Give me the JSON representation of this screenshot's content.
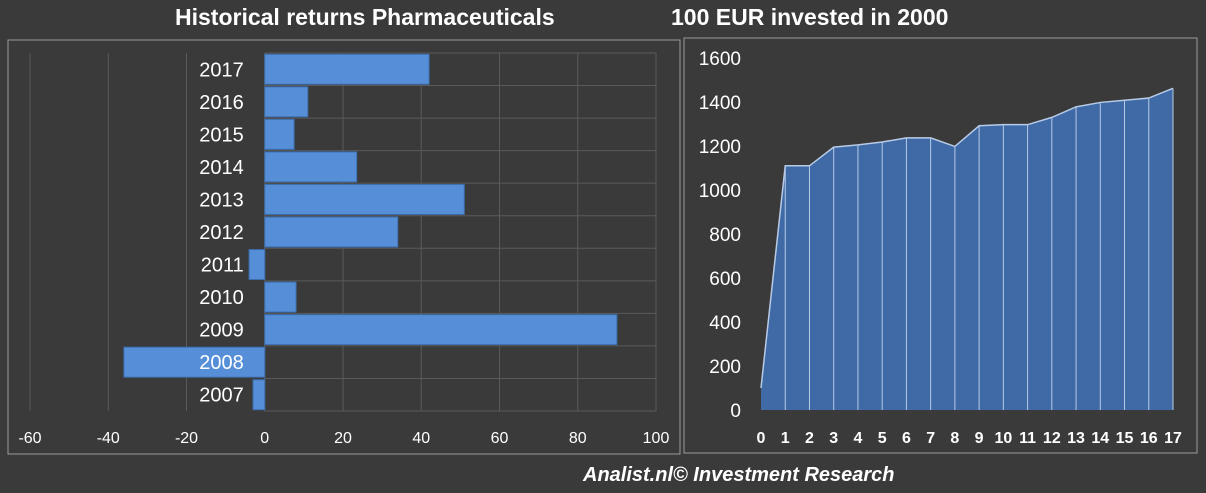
{
  "title_left": "Historical returns Pharmaceuticals",
  "title_right": "100 EUR invested in 2000",
  "footer": "Analist.nl© Investment Research",
  "colors": {
    "background": "#3a3a3a",
    "bar_fill": "#568fd8",
    "area_fill": "#3f6aa6",
    "area_line": "#b8cbe6",
    "grid": "#5a5a5a",
    "frame": "#9a9a9a"
  },
  "chart_data": [
    {
      "type": "bar",
      "orientation": "horizontal",
      "categories": [
        "2017",
        "2016",
        "2015",
        "2014",
        "2013",
        "2012",
        "2011",
        "2010",
        "2009",
        "2008",
        "2007"
      ],
      "values": [
        42,
        11,
        7.5,
        23.5,
        51,
        34,
        -4,
        8,
        90,
        -36,
        -3
      ],
      "xlim": [
        -60,
        100
      ],
      "xticks": [
        "-60",
        "-40",
        "-20",
        "0",
        "20",
        "40",
        "60",
        "80",
        "100"
      ],
      "grid": true
    },
    {
      "type": "area",
      "x": [
        "0",
        "1",
        "2",
        "3",
        "4",
        "5",
        "6",
        "7",
        "8",
        "9",
        "10",
        "11",
        "12",
        "13",
        "14",
        "15",
        "16",
        "17"
      ],
      "values": [
        100,
        1110,
        1110,
        1195,
        1205,
        1218,
        1237,
        1237,
        1198,
        1292,
        1297,
        1297,
        1330,
        1378,
        1398,
        1408,
        1418,
        1462
      ],
      "ylim": [
        0,
        1600
      ],
      "yticks": [
        "0",
        "200",
        "400",
        "600",
        "800",
        "1000",
        "1200",
        "1400",
        "1600"
      ],
      "grid": false
    }
  ]
}
